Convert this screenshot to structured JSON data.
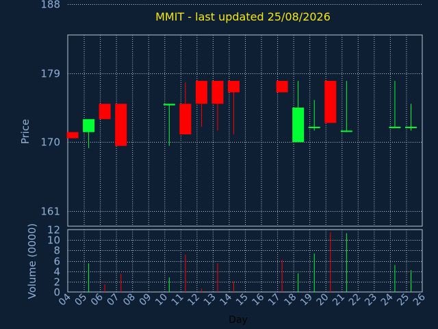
{
  "colors": {
    "background": "#0f1f33",
    "title": "#f5e61a",
    "axis_text": "#8fb0d8",
    "axis_label": "#000000",
    "grid": "#b8c4d4",
    "up": "#00ff33",
    "down": "#ff0000"
  },
  "chart_data": [
    {
      "type": "candlestick",
      "title": "MMIT - last updated 25/08/2026",
      "ylabel": "Price",
      "ylim": [
        159,
        184
      ],
      "yticks": [
        "161",
        "170",
        "179",
        "188"
      ],
      "grid": true,
      "candles": [
        {
          "day": 4.3,
          "open": 171.3,
          "high": 171.3,
          "low": 170.5,
          "close": 170.5
        },
        {
          "day": 5.3,
          "open": 171.3,
          "high": 173.0,
          "low": 169.2,
          "close": 173.0
        },
        {
          "day": 6.3,
          "open": 175.0,
          "high": 175.0,
          "low": 173.0,
          "close": 173.0
        },
        {
          "day": 7.3,
          "open": 175.0,
          "high": 175.0,
          "low": 169.5,
          "close": 169.5
        },
        {
          "day": 10.3,
          "open": 174.8,
          "high": 175.0,
          "low": 169.5,
          "close": 175.0
        },
        {
          "day": 11.3,
          "open": 175.0,
          "high": 177.8,
          "low": 171.0,
          "close": 171.0
        },
        {
          "day": 12.3,
          "open": 178.0,
          "high": 178.0,
          "low": 172.0,
          "close": 175.0
        },
        {
          "day": 13.3,
          "open": 178.0,
          "high": 178.0,
          "low": 171.5,
          "close": 175.0
        },
        {
          "day": 14.3,
          "open": 178.0,
          "high": 178.0,
          "low": 171.0,
          "close": 176.5
        },
        {
          "day": 17.3,
          "open": 178.0,
          "high": 178.0,
          "low": 176.5,
          "close": 176.5
        },
        {
          "day": 18.3,
          "open": 170.0,
          "high": 178.0,
          "low": 170.0,
          "close": 174.5
        },
        {
          "day": 19.3,
          "open": 172.0,
          "high": 175.5,
          "low": 171.5,
          "close": 172.0
        },
        {
          "day": 20.3,
          "open": 178.0,
          "high": 178.0,
          "low": 172.5,
          "close": 172.5
        },
        {
          "day": 21.3,
          "open": 171.5,
          "high": 178.0,
          "low": 171.3,
          "close": 171.5
        },
        {
          "day": 24.3,
          "open": 172.0,
          "high": 178.0,
          "low": 172.0,
          "close": 172.0
        },
        {
          "day": 25.3,
          "open": 172.0,
          "high": 175.0,
          "low": 171.5,
          "close": 172.0
        }
      ]
    },
    {
      "type": "bar",
      "xlabel": "Day",
      "ylabel": "Volume (0000)",
      "ylim": [
        0,
        12
      ],
      "yticks": [
        "0",
        "2",
        "4",
        "6",
        "8",
        "10",
        "12"
      ],
      "xticks": [
        "04",
        "05",
        "06",
        "07",
        "08",
        "09",
        "10",
        "11",
        "12",
        "13",
        "14",
        "15",
        "16",
        "17",
        "18",
        "19",
        "20",
        "21",
        "22",
        "23",
        "24",
        "25",
        "26"
      ],
      "grid": true,
      "volumes": [
        {
          "day": 5.3,
          "value": 5.5,
          "dir": "up"
        },
        {
          "day": 6.3,
          "value": 1.5,
          "dir": "down"
        },
        {
          "day": 7.3,
          "value": 3.5,
          "dir": "down"
        },
        {
          "day": 10.3,
          "value": 2.8,
          "dir": "up"
        },
        {
          "day": 11.3,
          "value": 7.2,
          "dir": "down"
        },
        {
          "day": 12.3,
          "value": 0.6,
          "dir": "down"
        },
        {
          "day": 13.3,
          "value": 5.5,
          "dir": "down"
        },
        {
          "day": 14.3,
          "value": 2.0,
          "dir": "down"
        },
        {
          "day": 17.3,
          "value": 6.2,
          "dir": "down"
        },
        {
          "day": 18.3,
          "value": 3.6,
          "dir": "up"
        },
        {
          "day": 19.3,
          "value": 7.4,
          "dir": "up"
        },
        {
          "day": 20.3,
          "value": 11.5,
          "dir": "down"
        },
        {
          "day": 21.3,
          "value": 11.3,
          "dir": "up"
        },
        {
          "day": 24.3,
          "value": 5.2,
          "dir": "up"
        },
        {
          "day": 25.3,
          "value": 4.2,
          "dir": "up"
        }
      ]
    }
  ]
}
